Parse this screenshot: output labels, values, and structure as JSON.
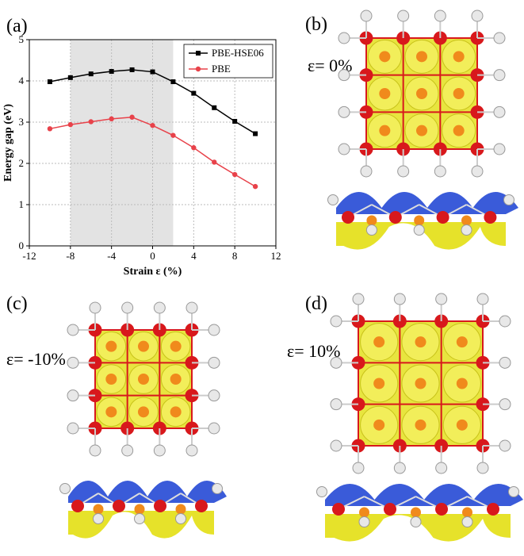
{
  "labels": {
    "a": "(a)",
    "b": "(b)",
    "c": "(c)",
    "d": "(d)"
  },
  "strain_labels": {
    "b": "ε= 0%",
    "c": "ε= -10%",
    "d": "ε= 10%"
  },
  "colors": {
    "hse": "#000000",
    "pbe": "#e8424a",
    "shade": "#e3e3e3",
    "yellow": "#e6e22a",
    "orange": "#f08a1c",
    "red": "#d8181c",
    "blue": "#3a5bd9",
    "white": "#e8e8e8"
  },
  "chart_data": {
    "type": "line",
    "xlabel": "Strain ε (%)",
    "ylabel": "Energy gap (eV)",
    "xlim": [
      -12,
      12
    ],
    "ylim": [
      0,
      5
    ],
    "xticks": [
      -12,
      -8,
      -4,
      0,
      4,
      8,
      12
    ],
    "yticks": [
      0,
      1,
      2,
      3,
      4,
      5
    ],
    "shaded_region": [
      -8,
      2
    ],
    "legend_position": "top-right",
    "series": [
      {
        "name": "PBE-HSE06",
        "marker": "square",
        "x": [
          -10,
          -8,
          -6,
          -4,
          -2,
          0,
          2,
          4,
          6,
          8,
          10
        ],
        "y": [
          3.98,
          4.08,
          4.17,
          4.23,
          4.27,
          4.22,
          3.98,
          3.7,
          3.35,
          3.02,
          2.72
        ]
      },
      {
        "name": "PBE",
        "marker": "circle",
        "x": [
          -10,
          -8,
          -6,
          -4,
          -2,
          0,
          2,
          4,
          6,
          8,
          10
        ],
        "y": [
          2.84,
          2.94,
          3.01,
          3.08,
          3.12,
          2.92,
          2.68,
          2.38,
          2.03,
          1.73,
          1.44
        ]
      }
    ]
  }
}
